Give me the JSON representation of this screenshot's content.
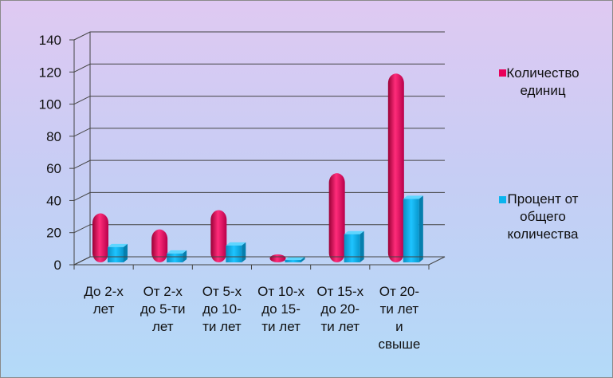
{
  "chart_data": {
    "type": "bar",
    "categories": [
      [
        "До 2-х",
        "лет"
      ],
      [
        "От 2-х",
        "до 5-ти",
        "лет"
      ],
      [
        "От 5-х",
        "до 10-",
        "ти лет"
      ],
      [
        "От 10-х",
        "до 15-",
        "ти лет"
      ],
      [
        "От 15-х",
        "до 20-",
        "ти лет"
      ],
      [
        "От 20-",
        "ти лет",
        "и",
        "свыше"
      ]
    ],
    "series": [
      {
        "name": "Количество единиц",
        "legend_lines": [
          "Количество",
          "единиц"
        ],
        "color": "#e8005a",
        "values": [
          33,
          23,
          35,
          7,
          58,
          120
        ]
      },
      {
        "name": "Процент от общего количества",
        "legend_lines": [
          "Процент от",
          "общего",
          "количества"
        ],
        "color": "#0ab4ee",
        "values": [
          12,
          8,
          13,
          2,
          20,
          42
        ]
      }
    ],
    "ylim": [
      0,
      140
    ],
    "yticks": [
      0,
      20,
      40,
      60,
      80,
      100,
      120,
      140
    ],
    "grid": true,
    "legend_position": "right"
  }
}
